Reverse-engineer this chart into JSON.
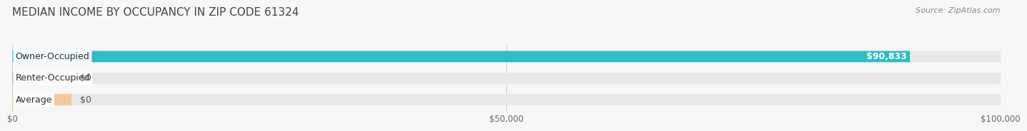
{
  "title": "MEDIAN INCOME BY OCCUPANCY IN ZIP CODE 61324",
  "source": "Source: ZipAtlas.com",
  "categories": [
    "Owner-Occupied",
    "Renter-Occupied",
    "Average"
  ],
  "values": [
    90833,
    0,
    0
  ],
  "bar_colors": [
    "#2bbdc8",
    "#b39ddb",
    "#f5c89a"
  ],
  "bar_bg_color": "#e8e8eb",
  "label_values": [
    "$90,833",
    "$0",
    "$0"
  ],
  "x_ticks": [
    0,
    50000,
    100000
  ],
  "x_tick_labels": [
    "$0",
    "$50,000",
    "$100,000"
  ],
  "xlim": [
    0,
    100000
  ],
  "title_fontsize": 11,
  "source_fontsize": 8,
  "label_fontsize": 9,
  "bar_height": 0.52,
  "background_color": "#f7f7f7"
}
